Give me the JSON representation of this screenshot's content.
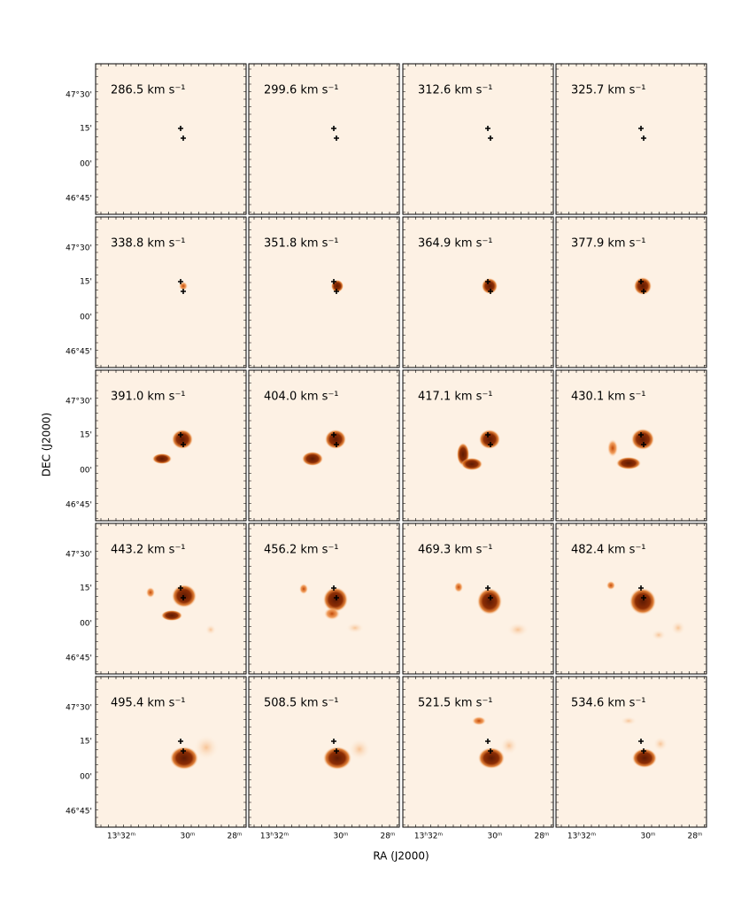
{
  "panels": [
    {
      "label": "286.5 km s⁻¹"
    },
    {
      "label": "299.6 km s⁻¹"
    },
    {
      "label": "312.6 km s⁻¹"
    },
    {
      "label": "325.7 km s⁻¹"
    },
    {
      "label": "338.8 km s⁻¹"
    },
    {
      "label": "351.8 km s⁻¹"
    },
    {
      "label": "364.9 km s⁻¹"
    },
    {
      "label": "377.9 km s⁻¹"
    },
    {
      "label": "391.0 km s⁻¹"
    },
    {
      "label": "404.0 km s⁻¹"
    },
    {
      "label": "417.1 km s⁻¹"
    },
    {
      "label": "430.1 km s⁻¹"
    },
    {
      "label": "443.2 km s⁻¹"
    },
    {
      "label": "456.2 km s⁻¹"
    },
    {
      "label": "469.3 km s⁻¹"
    },
    {
      "label": "482.4 km s⁻¹"
    },
    {
      "label": "495.4 km s⁻¹"
    },
    {
      "label": "508.5 km s⁻¹"
    },
    {
      "label": "521.5 km s⁻¹"
    },
    {
      "label": "534.6 km s⁻¹"
    }
  ],
  "axes": {
    "xlabel": "RA (J2000)",
    "ylabel": "DEC (J2000)",
    "xticks": [
      "13ʰ32ᵐ",
      "30ᵐ",
      "28ᵐ"
    ],
    "yticks": [
      "47°30'",
      "15'",
      "00'",
      "46°45'"
    ]
  }
}
